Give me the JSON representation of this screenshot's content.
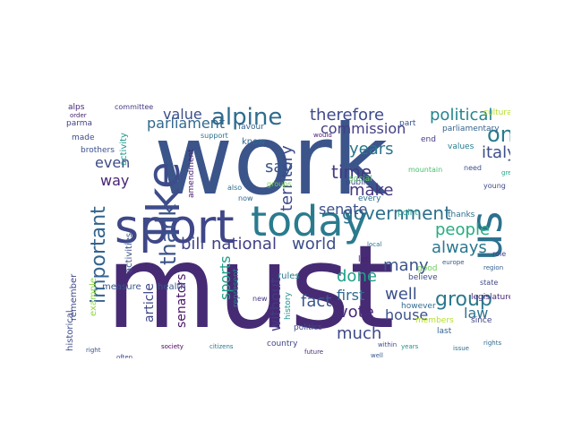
{
  "word_cloud": {
    "words": [
      {
        "text": "must",
        "color": "#462b74"
      },
      {
        "text": "work",
        "color": "#3b558b"
      },
      {
        "text": "great",
        "color": "#3a5e8c"
      },
      {
        "text": "sport",
        "color": "#3f4788"
      },
      {
        "text": "today",
        "color": "#2a7b8e"
      },
      {
        "text": "like",
        "color": "#3e4c8a"
      },
      {
        "text": "us",
        "color": "#2c718e"
      },
      {
        "text": "alpine",
        "color": "#2f6c8e"
      },
      {
        "text": "thank",
        "color": "#3b528b"
      },
      {
        "text": "important",
        "color": "#32648e"
      },
      {
        "text": "group",
        "color": "#2a788e"
      },
      {
        "text": "one",
        "color": "#287c8e"
      },
      {
        "text": "government",
        "color": "#2d708e"
      },
      {
        "text": "bill",
        "color": "#414487"
      },
      {
        "text": "national",
        "color": "#424086"
      },
      {
        "text": "world",
        "color": "#3d4e8a"
      },
      {
        "text": "people",
        "color": "#26ad81"
      },
      {
        "text": "territory",
        "color": "#3e4a89"
      },
      {
        "text": "constitution",
        "color": "#34608d"
      },
      {
        "text": "political",
        "color": "#25858e"
      },
      {
        "text": "therefore",
        "color": "#3e4989"
      },
      {
        "text": "parliament",
        "color": "#31688e"
      },
      {
        "text": "commission",
        "color": "#433e85"
      },
      {
        "text": "years",
        "color": "#2a768e"
      },
      {
        "text": "time",
        "color": "#443a83"
      },
      {
        "text": "make",
        "color": "#453781"
      },
      {
        "text": "senate",
        "color": "#3b518b"
      },
      {
        "text": "italy",
        "color": "#3c4f8a"
      },
      {
        "text": "say",
        "color": "#39558c"
      },
      {
        "text": "way",
        "color": "#482475"
      },
      {
        "text": "even",
        "color": "#3e4a89"
      },
      {
        "text": "value",
        "color": "#3c4f8a"
      },
      {
        "text": "always",
        "color": "#2a788e"
      },
      {
        "text": "many",
        "color": "#3a538b"
      },
      {
        "text": "done",
        "color": "#1fa187"
      },
      {
        "text": "first",
        "color": "#306a8e"
      },
      {
        "text": "vote",
        "color": "#482878"
      },
      {
        "text": "well",
        "color": "#3c508b"
      },
      {
        "text": "house",
        "color": "#3b518b"
      },
      {
        "text": "fact",
        "color": "#38588c"
      },
      {
        "text": "much",
        "color": "#3e4989"
      },
      {
        "text": "law",
        "color": "#2c718e"
      },
      {
        "text": "without",
        "color": "#443983"
      },
      {
        "text": "sports",
        "color": "#1f9e89"
      },
      {
        "text": "senators",
        "color": "#481467"
      },
      {
        "text": "article",
        "color": "#3f4889"
      },
      {
        "text": "historical",
        "color": "#3e4c8a"
      },
      {
        "text": "remember",
        "color": "#3e4989"
      },
      {
        "text": "alps",
        "color": "#482878"
      },
      {
        "text": "parma",
        "color": "#433e85"
      },
      {
        "text": "made",
        "color": "#3d4d8a"
      },
      {
        "text": "committee",
        "color": "#453882"
      },
      {
        "text": "activity",
        "color": "#1f998a"
      },
      {
        "text": "amendment",
        "color": "#481d6f"
      },
      {
        "text": "know",
        "color": "#30698e"
      },
      {
        "text": "activities",
        "color": "#3b528b"
      },
      {
        "text": "health",
        "color": "#39568c"
      },
      {
        "text": "measure",
        "color": "#3a548c"
      },
      {
        "text": "example",
        "color": "#8fd744"
      },
      {
        "text": "rules",
        "color": "#29798e"
      },
      {
        "text": "represent",
        "color": "#26828e"
      },
      {
        "text": "history",
        "color": "#21918c"
      },
      {
        "text": "country",
        "color": "#404688"
      },
      {
        "text": "however",
        "color": "#306a8e"
      },
      {
        "text": "believe",
        "color": "#3e4a89"
      },
      {
        "text": "last",
        "color": "#33638d"
      },
      {
        "text": "thanks",
        "color": "#2d708e"
      },
      {
        "text": "point",
        "color": "#1fa088"
      },
      {
        "text": "public",
        "color": "#3e4989"
      },
      {
        "text": "every",
        "color": "#2e6e8e"
      },
      {
        "text": "values",
        "color": "#287d8e"
      },
      {
        "text": "social",
        "color": "#5ec962"
      },
      {
        "text": "part",
        "color": "#3b528b"
      },
      {
        "text": "end",
        "color": "#433d84"
      },
      {
        "text": "parliamentary",
        "color": "#34618d"
      },
      {
        "text": "cultural",
        "color": "#b5de2b"
      },
      {
        "text": "since",
        "color": "#414287"
      },
      {
        "text": "legislature",
        "color": "#482677"
      },
      {
        "text": "members",
        "color": "#b5de2b"
      },
      {
        "text": "politics",
        "color": "#3e4a89"
      },
      {
        "text": "state",
        "color": "#3f4788"
      },
      {
        "text": "let",
        "color": "#482173"
      },
      {
        "text": "favour",
        "color": "#33638d"
      },
      {
        "text": "brothers",
        "color": "#3b528b"
      },
      {
        "text": "good",
        "color": "#6ccd5a"
      },
      {
        "text": "support",
        "color": "#2c718e"
      },
      {
        "text": "young",
        "color": "#3e4a89"
      },
      {
        "text": "order",
        "color": "#482071"
      },
      {
        "text": "groups",
        "color": "#7ad151"
      },
      {
        "text": "now",
        "color": "#31688e"
      },
      {
        "text": "need",
        "color": "#3b528b"
      },
      {
        "text": "mountain",
        "color": "#4ac16d"
      },
      {
        "text": "also",
        "color": "#2e6f8e"
      },
      {
        "text": "role",
        "color": "#3f4788"
      },
      {
        "text": "great",
        "color": "#22a884"
      },
      {
        "text": "new",
        "color": "#443a83"
      },
      {
        "text": "europe",
        "color": "#38588c"
      },
      {
        "text": "local",
        "color": "#2b758e"
      },
      {
        "text": "would",
        "color": "#481a6c"
      },
      {
        "text": "within",
        "color": "#3d4e8a"
      },
      {
        "text": "rights",
        "color": "#2f6b8e"
      },
      {
        "text": "right",
        "color": "#3b528b"
      },
      {
        "text": "society",
        "color": "#440154"
      },
      {
        "text": "region",
        "color": "#35608d"
      },
      {
        "text": "citizens",
        "color": "#2a788e"
      },
      {
        "text": "years",
        "color": "#21918c"
      },
      {
        "text": "future",
        "color": "#472d7b"
      },
      {
        "text": "often",
        "color": "#3e4a89"
      },
      {
        "text": "issue",
        "color": "#2c718e"
      },
      {
        "text": "well",
        "color": "#38588c"
      }
    ]
  }
}
